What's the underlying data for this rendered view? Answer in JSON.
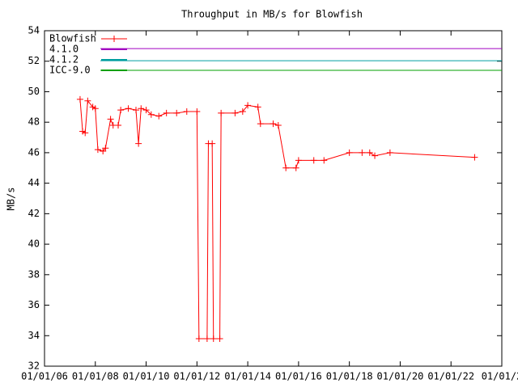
{
  "chart_data": {
    "type": "line",
    "title": "Throughput in MB/s for Blowfish",
    "y_label": "MB/s",
    "xlim": [
      6,
      24
    ],
    "xticks": [
      {
        "value": 6,
        "label": "01/01/06"
      },
      {
        "value": 8,
        "label": "01/01/08"
      },
      {
        "value": 10,
        "label": "01/01/10"
      },
      {
        "value": 12,
        "label": "01/01/12"
      },
      {
        "value": 14,
        "label": "01/01/14"
      },
      {
        "value": 16,
        "label": "01/01/16"
      },
      {
        "value": 18,
        "label": "01/01/18"
      },
      {
        "value": 20,
        "label": "01/01/20"
      },
      {
        "value": 22,
        "label": "01/01/22"
      },
      {
        "value": 24,
        "label": "01/01/2"
      }
    ],
    "ylim": [
      32,
      54
    ],
    "yticks": [
      32,
      34,
      36,
      38,
      40,
      42,
      44,
      46,
      48,
      50,
      52,
      54
    ],
    "legend": "top-left",
    "series": [
      {
        "name": "Blowfish",
        "color": "#ff0000",
        "markers": true,
        "x": [
          7.4,
          7.5,
          7.6,
          7.7,
          7.9,
          8.0,
          8.1,
          8.3,
          8.4,
          8.6,
          8.7,
          8.9,
          9.0,
          9.3,
          9.6,
          9.7,
          9.8,
          10.0,
          10.2,
          10.5,
          10.8,
          11.2,
          11.6,
          12.0,
          12.08,
          12.4,
          12.45,
          12.6,
          12.65,
          12.9,
          12.95,
          13.5,
          13.8,
          14.0,
          14.4,
          14.5,
          15.0,
          15.2,
          15.5,
          15.9,
          16.0,
          16.6,
          17.0,
          18.0,
          18.5,
          18.8,
          19.0,
          19.6,
          22.93
        ],
        "values": [
          49.5,
          47.4,
          47.3,
          49.4,
          49.0,
          48.9,
          46.2,
          46.1,
          46.3,
          48.2,
          47.8,
          47.8,
          48.8,
          48.9,
          48.8,
          46.6,
          48.9,
          48.8,
          48.5,
          48.4,
          48.6,
          48.6,
          48.7,
          48.7,
          33.8,
          33.8,
          46.6,
          46.6,
          33.8,
          33.8,
          48.6,
          48.6,
          48.7,
          49.1,
          49.0,
          47.9,
          47.9,
          47.8,
          45.0,
          45.0,
          45.5,
          45.5,
          45.5,
          46.0,
          46.0,
          46.0,
          45.8,
          46.0,
          45.7
        ]
      },
      {
        "name": "4.1.0",
        "color": "#a000c0",
        "x": [
          8.2,
          24
        ],
        "values": [
          52.83,
          52.83
        ]
      },
      {
        "name": "4.1.2",
        "color": "#009ea0",
        "x": [
          8.2,
          24
        ],
        "values": [
          52.03,
          52.03
        ]
      },
      {
        "name": "ICC-9.0",
        "color": "#00a000",
        "x": [
          8.2,
          24
        ],
        "values": [
          51.4,
          51.4
        ]
      }
    ]
  }
}
